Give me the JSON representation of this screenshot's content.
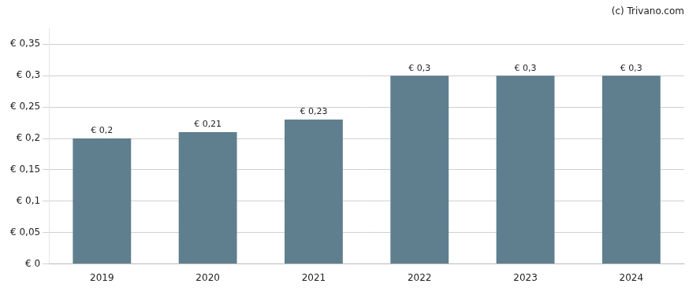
{
  "chart_data": {
    "type": "bar",
    "categories": [
      "2019",
      "2020",
      "2021",
      "2022",
      "2023",
      "2024"
    ],
    "values": [
      0.2,
      0.21,
      0.23,
      0.3,
      0.3,
      0.3
    ],
    "value_labels": [
      "€ 0,2",
      "€ 0,21",
      "€ 0,23",
      "€ 0,3",
      "€ 0,3",
      "€ 0,3"
    ],
    "data_labels": true,
    "color": "#5f7f8f",
    "ylim": [
      0,
      0.375
    ],
    "yticks": [
      {
        "value": 0,
        "label": "€ 0"
      },
      {
        "value": 0.05,
        "label": "€ 0,05"
      },
      {
        "value": 0.1,
        "label": "€ 0,1"
      },
      {
        "value": 0.15,
        "label": "€ 0,15"
      },
      {
        "value": 0.2,
        "label": "€ 0,2"
      },
      {
        "value": 0.25,
        "label": "€ 0,25"
      },
      {
        "value": 0.3,
        "label": "€ 0,3"
      },
      {
        "value": 0.35,
        "label": "€ 0,35"
      }
    ],
    "grid": true,
    "annotations": [
      "(c) Trivano.com"
    ]
  }
}
